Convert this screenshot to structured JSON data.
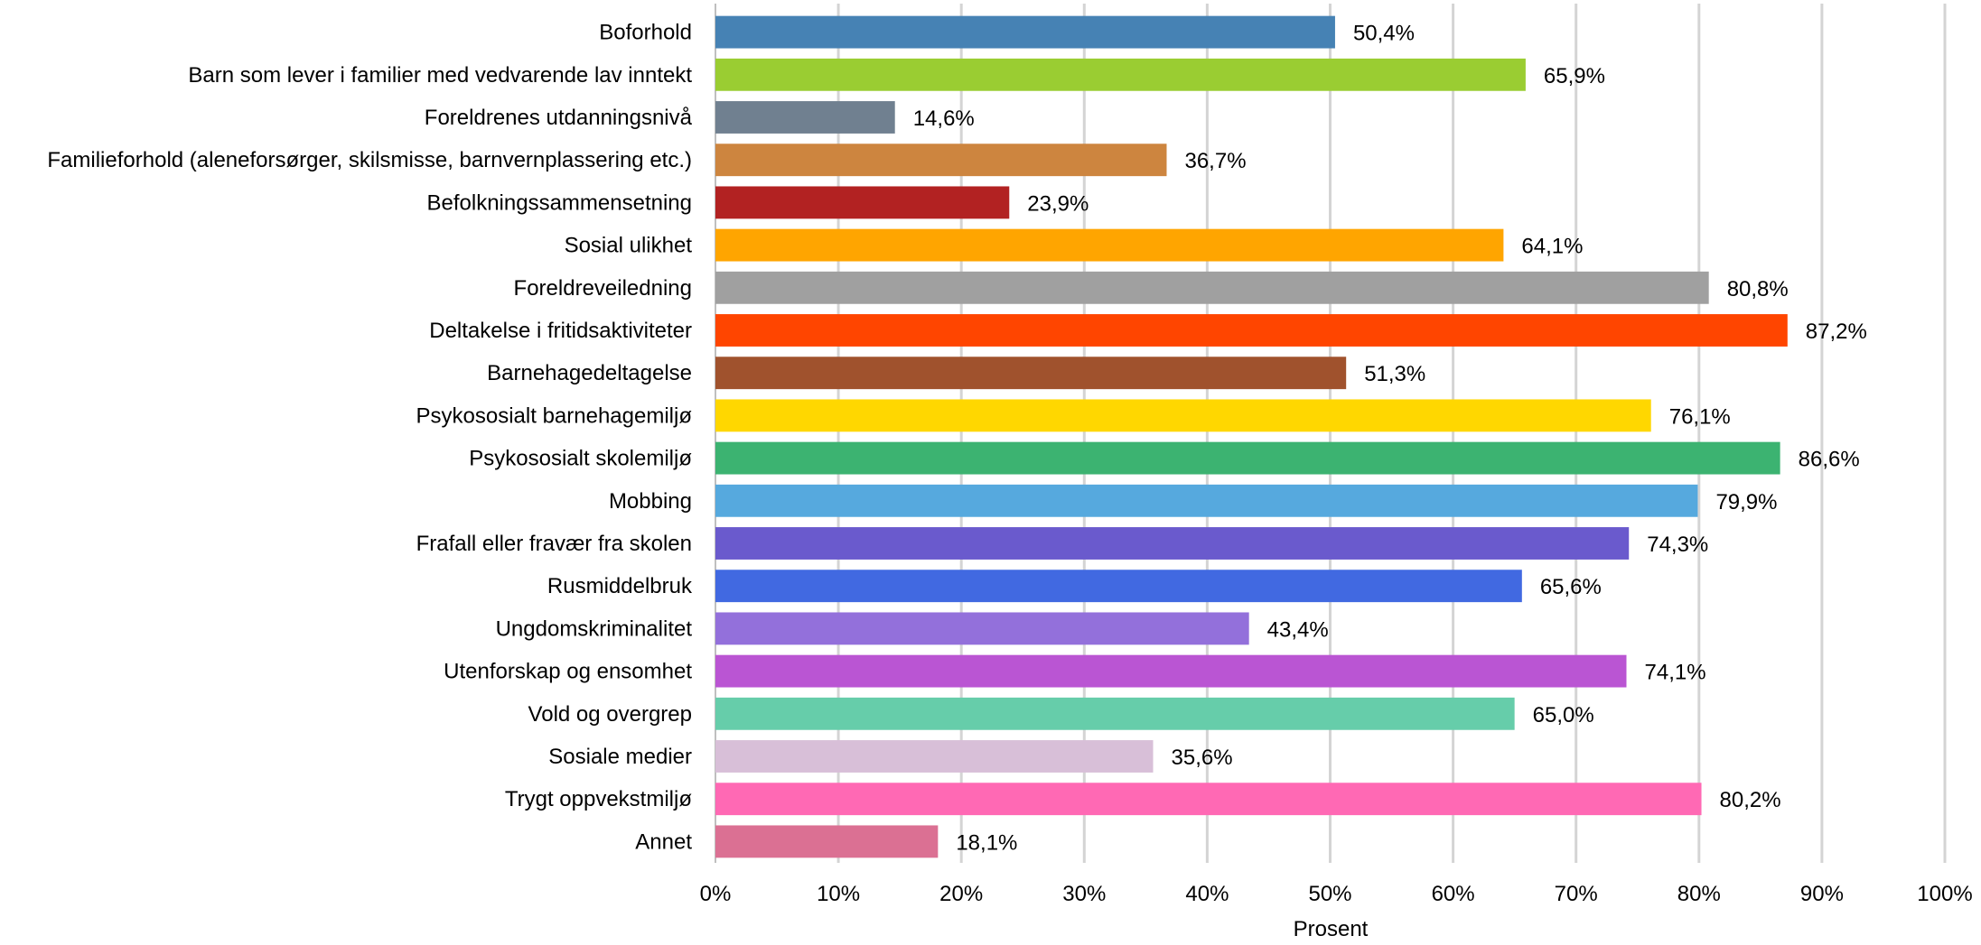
{
  "chart_data": {
    "type": "bar",
    "orientation": "horizontal",
    "categories": [
      "Boforhold",
      "Barn som lever i familier med vedvarende lav inntekt",
      "Foreldrenes utdanningsnivå",
      "Familieforhold (aleneforsørger, skilsmisse, barnvernplassering etc.)",
      "Befolkningssammensetning",
      "Sosial ulikhet",
      "Foreldreveiledning",
      "Deltakelse i fritidsaktiviteter",
      "Barnehagedeltagelse",
      "Psykososialt barnehagemiljø",
      "Psykososialt skolemiljø",
      "Mobbing",
      "Frafall eller fravær fra skolen",
      "Rusmiddelbruk",
      "Ungdomskriminalitet",
      "Utenforskap og ensomhet",
      "Vold og overgrep",
      "Sosiale medier",
      "Trygt oppvekstmiljø",
      "Annet"
    ],
    "values": [
      50.4,
      65.9,
      14.6,
      36.7,
      23.9,
      64.1,
      80.8,
      87.2,
      51.3,
      76.1,
      86.6,
      79.9,
      74.3,
      65.6,
      43.4,
      74.1,
      65.0,
      35.6,
      80.2,
      18.1
    ],
    "value_labels": [
      "50,4%",
      "65,9%",
      "14,6%",
      "36,7%",
      "23,9%",
      "64,1%",
      "80,8%",
      "87,2%",
      "51,3%",
      "76,1%",
      "86,6%",
      "79,9%",
      "74,3%",
      "65,6%",
      "43,4%",
      "74,1%",
      "65,0%",
      "35,6%",
      "80,2%",
      "18,1%"
    ],
    "colors": [
      "#4682B4",
      "#9ACD32",
      "#708090",
      "#CD853F",
      "#B22222",
      "#FFA500",
      "#A0A0A0",
      "#FF4500",
      "#A0522D",
      "#FFD700",
      "#3CB371",
      "#56A9DE",
      "#6A5ACD",
      "#4169E1",
      "#9370DB",
      "#BA55D3",
      "#66CDAA",
      "#D8BFD8",
      "#FF69B4",
      "#DB7093"
    ],
    "xlabel": "Prosent",
    "ylabel": "",
    "title": "",
    "xlim": [
      0,
      100
    ],
    "x_ticks": [
      0,
      10,
      20,
      30,
      40,
      50,
      60,
      70,
      80,
      90,
      100
    ],
    "x_tick_labels": [
      "0%",
      "10%",
      "20%",
      "30%",
      "40%",
      "50%",
      "60%",
      "70%",
      "80%",
      "90%",
      "100%"
    ],
    "grid": true,
    "legend": "none"
  }
}
